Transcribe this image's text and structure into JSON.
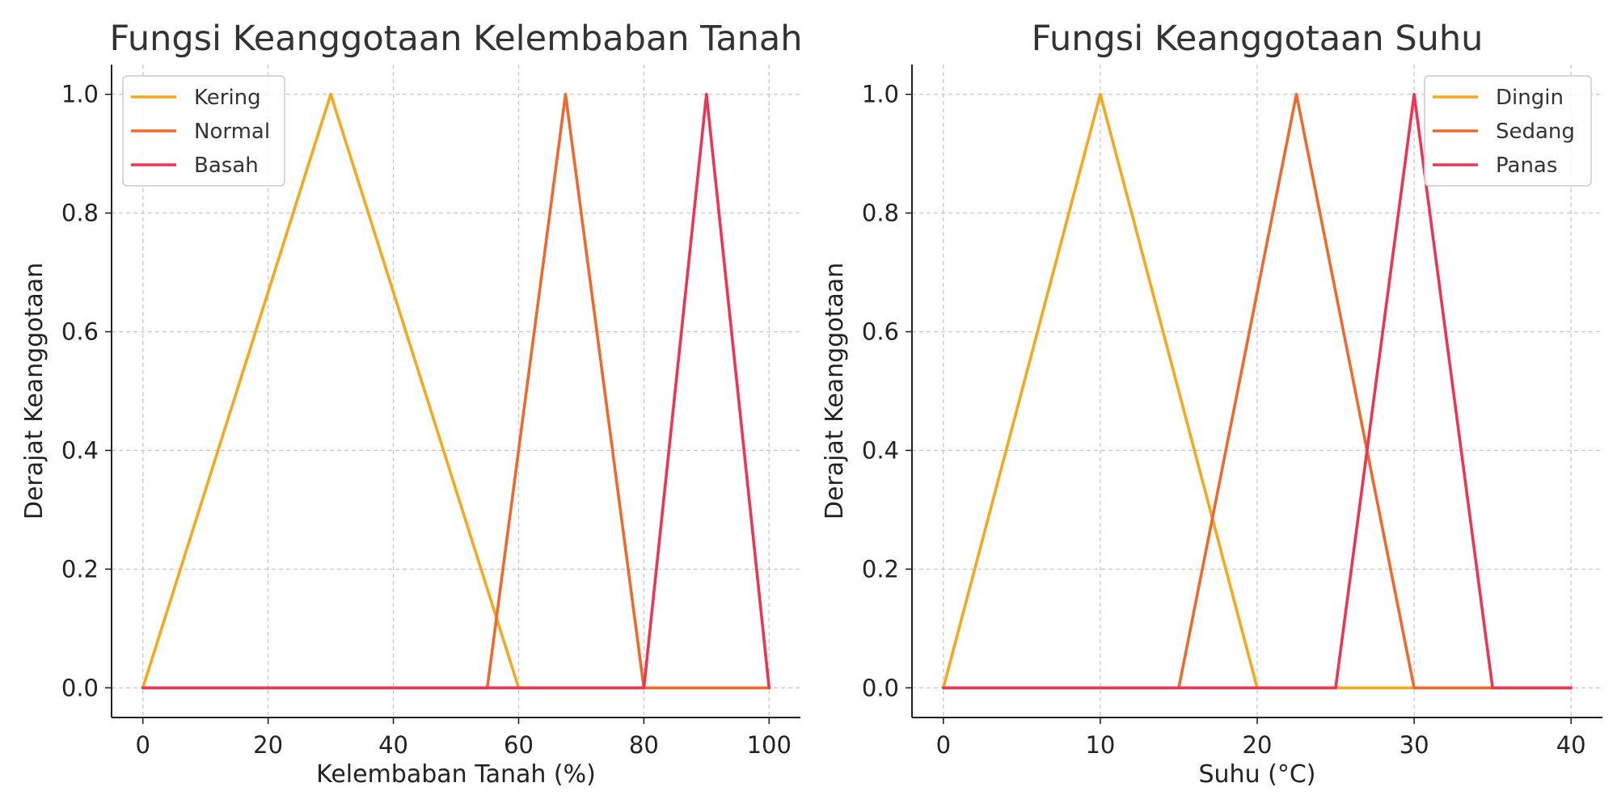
{
  "chart_data": [
    {
      "type": "line",
      "title": "Fungsi Keanggotaan Kelembaban Tanah",
      "xlabel": "Kelembaban Tanah (%)",
      "ylabel": "Derajat Keanggotaan",
      "xlim": [
        -5,
        105
      ],
      "ylim": [
        -0.05,
        1.05
      ],
      "xticks": [
        0,
        20,
        40,
        60,
        80,
        100
      ],
      "xtick_labels": [
        "0",
        "20",
        "40",
        "60",
        "80",
        "100"
      ],
      "yticks": [
        0,
        0.2,
        0.4,
        0.6,
        0.8,
        1.0
      ],
      "ytick_labels": [
        "0.0",
        "0.2",
        "0.4",
        "0.6",
        "0.8",
        "1.0"
      ],
      "grid": true,
      "legend_position": "top-left",
      "series": [
        {
          "name": "Kering",
          "color": "#F5A81C",
          "x": [
            0,
            30,
            60,
            100
          ],
          "y": [
            0,
            1,
            0,
            0
          ]
        },
        {
          "name": "Normal",
          "color": "#EE6A2C",
          "x": [
            0,
            55,
            67.5,
            80,
            100
          ],
          "y": [
            0,
            0,
            1,
            0,
            0
          ]
        },
        {
          "name": "Basah",
          "color": "#EE3353",
          "x": [
            0,
            80,
            90,
            100
          ],
          "y": [
            0,
            0,
            1,
            0
          ]
        }
      ]
    },
    {
      "type": "line",
      "title": "Fungsi Keanggotaan Suhu",
      "xlabel": "Suhu (°C)",
      "ylabel": "Derajat Keanggotaan",
      "xlim": [
        -2,
        42
      ],
      "ylim": [
        -0.05,
        1.05
      ],
      "xticks": [
        0,
        10,
        20,
        30,
        40
      ],
      "xtick_labels": [
        "0",
        "10",
        "20",
        "30",
        "40"
      ],
      "yticks": [
        0,
        0.2,
        0.4,
        0.6,
        0.8,
        1.0
      ],
      "ytick_labels": [
        "0.0",
        "0.2",
        "0.4",
        "0.6",
        "0.8",
        "1.0"
      ],
      "grid": true,
      "legend_position": "top-right",
      "series": [
        {
          "name": "Dingin",
          "color": "#F5A81C",
          "x": [
            0,
            10,
            20,
            40
          ],
          "y": [
            0,
            1,
            0,
            0
          ]
        },
        {
          "name": "Sedang",
          "color": "#EE6A2C",
          "x": [
            0,
            15,
            22.5,
            30,
            40
          ],
          "y": [
            0,
            0,
            1,
            0,
            0
          ]
        },
        {
          "name": "Panas",
          "color": "#EE3353",
          "x": [
            0,
            25,
            30,
            35,
            40
          ],
          "y": [
            0,
            0,
            1,
            0,
            0
          ]
        }
      ]
    }
  ]
}
